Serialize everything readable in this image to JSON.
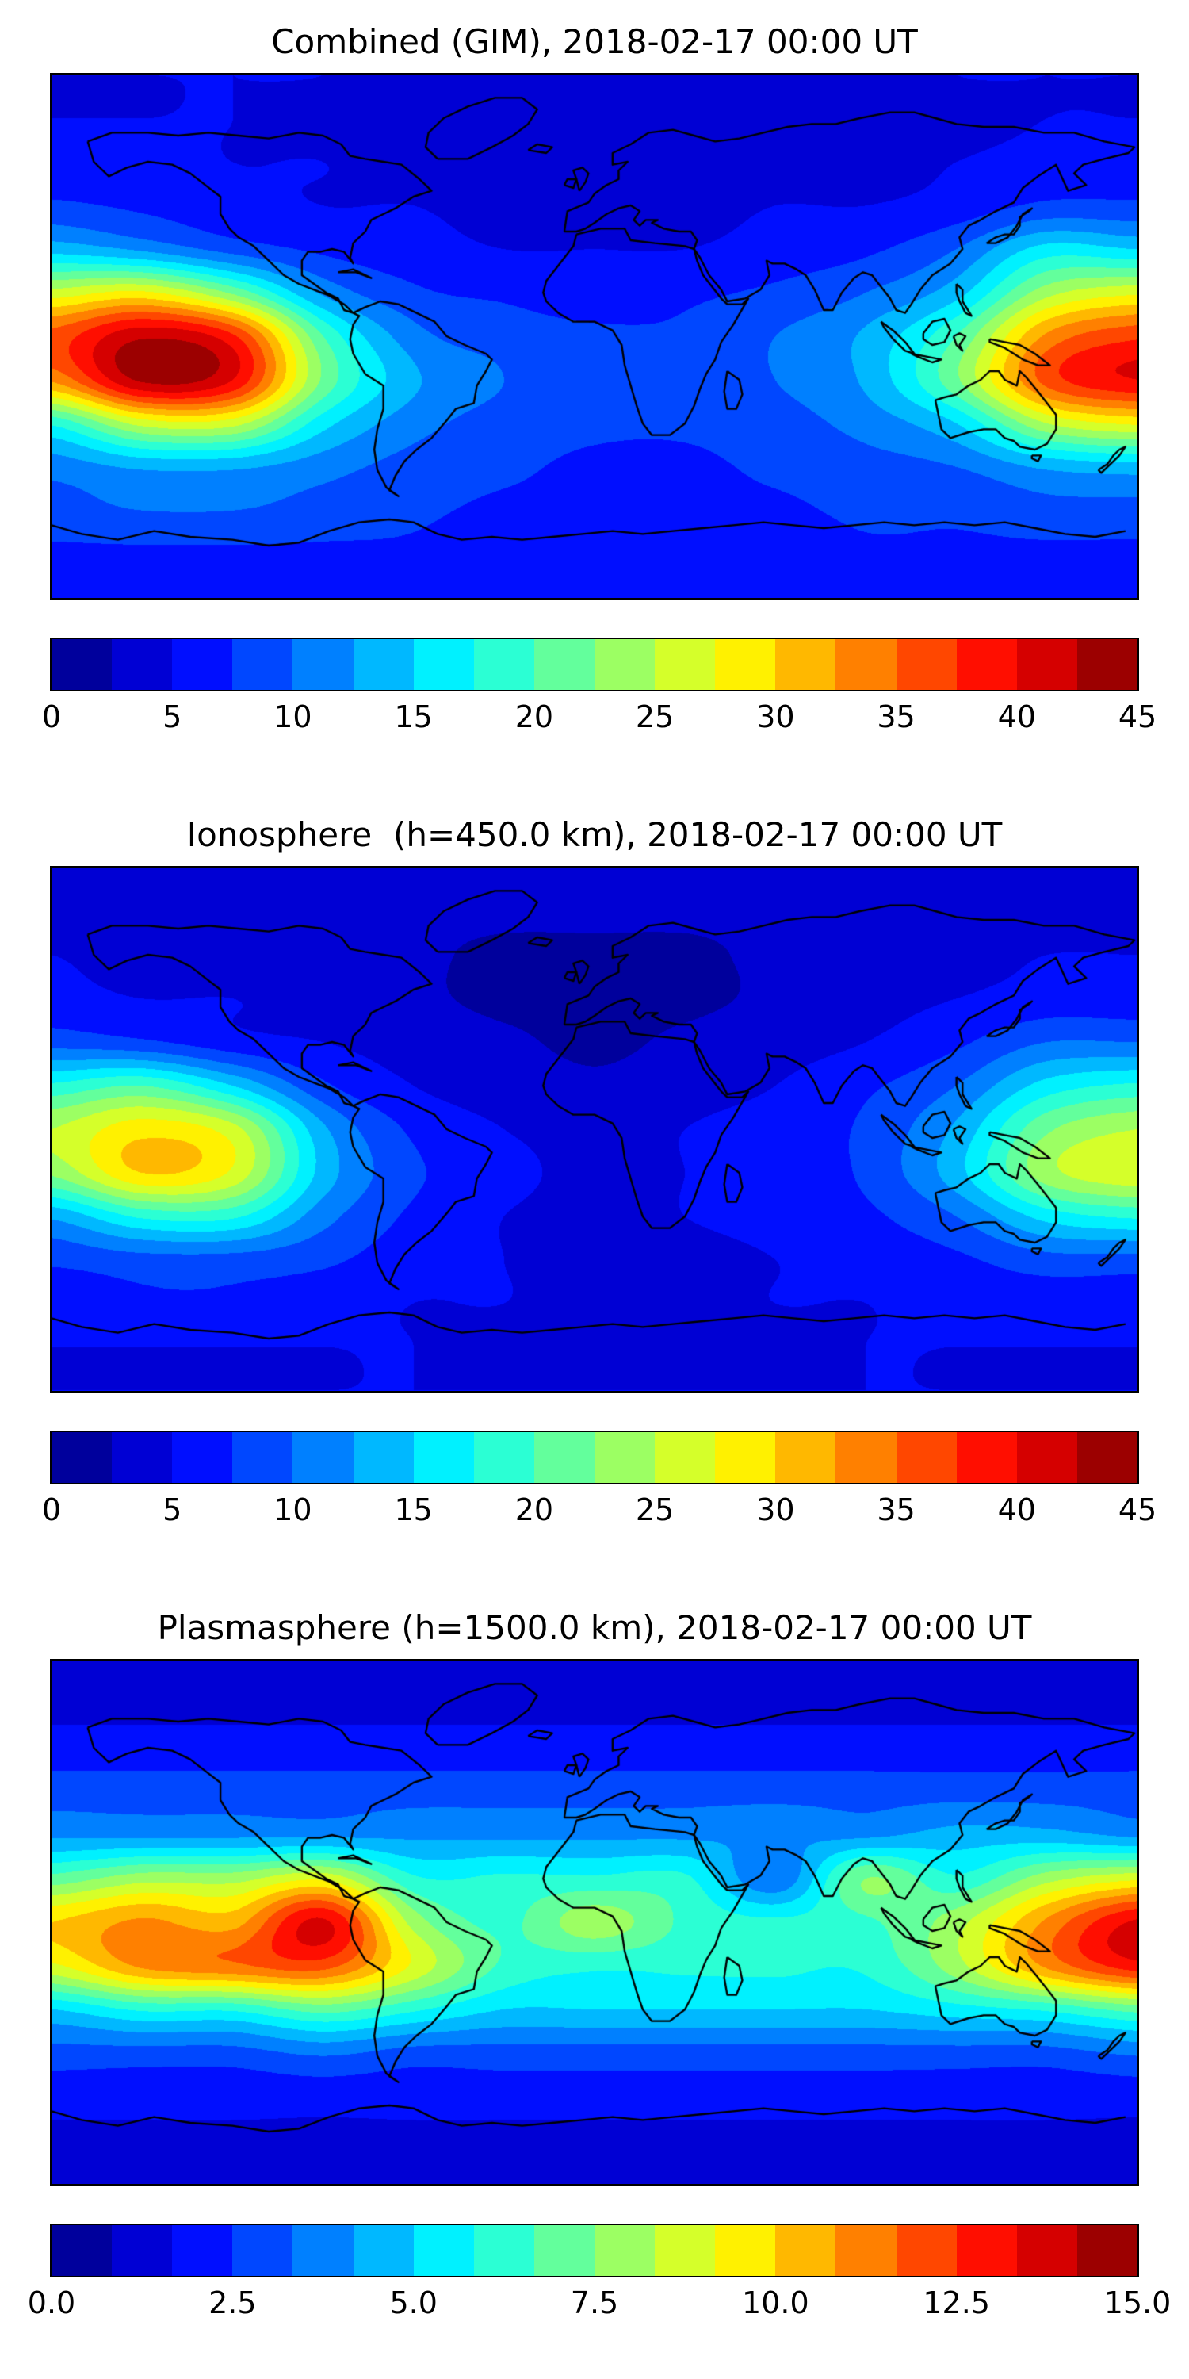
{
  "figure": {
    "background": "#ffffff",
    "coastline_color": "#000000"
  },
  "chart_data": [
    {
      "type": "heatmap",
      "title": "Combined (GIM), 2018-02-17 00:00 UT",
      "projection": "equirectangular",
      "colormap": "jet",
      "levels": 18,
      "vmin": 0,
      "vmax": 45,
      "lon": [
        -180,
        -150,
        -120,
        -90,
        -60,
        -30,
        0,
        30,
        60,
        90,
        120,
        150,
        180
      ],
      "lat": [
        90,
        75,
        60,
        45,
        30,
        15,
        0,
        -15,
        -30,
        -45,
        -60,
        -75,
        -90
      ],
      "values": [
        [
          5,
          5,
          5,
          5,
          4,
          4,
          4,
          4,
          4,
          4,
          5,
          5,
          5
        ],
        [
          5,
          5,
          5,
          4,
          4,
          3,
          3,
          3,
          3,
          4,
          4,
          5,
          5
        ],
        [
          6,
          6,
          5,
          5,
          4,
          3,
          3,
          3,
          4,
          4,
          5,
          6,
          6
        ],
        [
          8,
          7,
          6,
          5,
          5,
          4,
          4,
          4,
          5,
          5,
          6,
          8,
          8
        ],
        [
          14,
          12,
          9,
          7,
          6,
          5,
          5,
          5,
          6,
          7,
          10,
          16,
          15
        ],
        [
          26,
          28,
          22,
          12,
          8,
          7,
          6,
          7,
          8,
          10,
          14,
          24,
          27
        ],
        [
          36,
          42,
          38,
          20,
          11,
          9,
          8,
          8,
          10,
          13,
          20,
          33,
          37
        ],
        [
          33,
          43,
          40,
          22,
          13,
          10,
          8,
          9,
          10,
          13,
          22,
          36,
          40
        ],
        [
          18,
          26,
          26,
          16,
          11,
          9,
          8,
          8,
          9,
          11,
          15,
          25,
          28
        ],
        [
          11,
          13,
          13,
          11,
          9,
          8,
          7,
          7,
          8,
          9,
          10,
          13,
          14
        ],
        [
          9,
          10,
          10,
          9,
          8,
          7,
          7,
          7,
          7,
          8,
          8,
          9,
          9
        ],
        [
          7,
          7,
          7,
          7,
          7,
          6,
          6,
          6,
          6,
          7,
          7,
          7,
          7
        ],
        [
          6,
          6,
          6,
          6,
          6,
          6,
          6,
          6,
          6,
          6,
          6,
          6,
          6
        ]
      ],
      "colorbar_ticks": [
        0,
        5,
        10,
        15,
        20,
        25,
        30,
        35,
        40,
        45
      ],
      "colorbar_tick_labels": [
        "0",
        "5",
        "10",
        "15",
        "20",
        "25",
        "30",
        "35",
        "40",
        "45"
      ]
    },
    {
      "type": "heatmap",
      "title": "Ionosphere  (h=450.0 km), 2018-02-17 00:00 UT",
      "projection": "equirectangular",
      "colormap": "jet",
      "levels": 18,
      "vmin": 0,
      "vmax": 45,
      "lon": [
        -180,
        -150,
        -120,
        -90,
        -60,
        -30,
        0,
        30,
        60,
        90,
        120,
        150,
        180
      ],
      "lat": [
        90,
        75,
        60,
        45,
        30,
        15,
        0,
        -15,
        -30,
        -45,
        -60,
        -75,
        -90
      ],
      "values": [
        [
          4,
          4,
          4,
          4,
          3,
          3,
          3,
          3,
          3,
          3,
          4,
          4,
          4
        ],
        [
          4,
          4,
          4,
          3,
          3,
          3,
          3,
          3,
          3,
          3,
          4,
          4,
          4
        ],
        [
          5,
          4,
          4,
          4,
          3,
          2,
          2,
          2,
          3,
          3,
          4,
          5,
          5
        ],
        [
          6,
          5,
          5,
          4,
          3,
          2,
          2,
          2,
          3,
          4,
          5,
          6,
          6
        ],
        [
          9,
          8,
          6,
          5,
          4,
          3,
          2,
          3,
          4,
          5,
          7,
          10,
          10
        ],
        [
          18,
          20,
          15,
          8,
          5,
          4,
          3,
          4,
          5,
          7,
          10,
          16,
          18
        ],
        [
          25,
          29,
          26,
          13,
          7,
          5,
          4,
          5,
          6,
          8,
          13,
          22,
          25
        ],
        [
          23,
          30,
          27,
          14,
          8,
          6,
          4,
          5,
          6,
          8,
          14,
          24,
          27
        ],
        [
          13,
          18,
          18,
          11,
          7,
          5,
          4,
          5,
          6,
          7,
          10,
          16,
          18
        ],
        [
          8,
          9,
          9,
          8,
          6,
          5,
          4,
          4,
          5,
          6,
          7,
          9,
          9
        ],
        [
          6,
          7,
          7,
          6,
          5,
          5,
          4,
          4,
          5,
          5,
          6,
          6,
          6
        ],
        [
          5,
          5,
          5,
          5,
          5,
          4,
          4,
          4,
          4,
          5,
          5,
          5,
          5
        ],
        [
          5,
          5,
          5,
          5,
          5,
          5,
          5,
          5,
          5,
          5,
          5,
          5,
          5
        ]
      ],
      "colorbar_ticks": [
        0,
        5,
        10,
        15,
        20,
        25,
        30,
        35,
        40,
        45
      ],
      "colorbar_tick_labels": [
        "0",
        "5",
        "10",
        "15",
        "20",
        "25",
        "30",
        "35",
        "40",
        "45"
      ]
    },
    {
      "type": "heatmap",
      "title": "Plasmasphere (h=1500.0 km), 2018-02-17 00:00 UT",
      "projection": "equirectangular",
      "colormap": "jet",
      "levels": 18,
      "vmin": 0,
      "vmax": 15,
      "lon": [
        -180,
        -150,
        -120,
        -90,
        -60,
        -30,
        0,
        30,
        60,
        90,
        120,
        150,
        180
      ],
      "lat": [
        90,
        75,
        60,
        45,
        30,
        15,
        0,
        -15,
        -30,
        -45,
        -60,
        -75,
        -90
      ],
      "values": [
        [
          1.5,
          1.5,
          1.5,
          1.5,
          1.5,
          1.5,
          1.5,
          1.5,
          1.5,
          1.5,
          1.5,
          1.5,
          1.5
        ],
        [
          1.5,
          1.5,
          1.5,
          1.5,
          1.5,
          1.5,
          1.5,
          1.5,
          1.5,
          1.5,
          1.5,
          1.5,
          1.5
        ],
        [
          2,
          2,
          2,
          2,
          2,
          2,
          2,
          2,
          2,
          2,
          2,
          2,
          2
        ],
        [
          3,
          3,
          3,
          3,
          3,
          3,
          3,
          3,
          3,
          3,
          3,
          3,
          3
        ],
        [
          4,
          4,
          4,
          4,
          4,
          4,
          4,
          4,
          4,
          4,
          4.5,
          4.5,
          4
        ],
        [
          7,
          8,
          8,
          9,
          6,
          6,
          6,
          6,
          3.5,
          7.5,
          6,
          8,
          9
        ],
        [
          10,
          11,
          10.5,
          13.5,
          8,
          6.5,
          8,
          6.5,
          6,
          6.5,
          8,
          11,
          13.5
        ],
        [
          9,
          11,
          11.5,
          12,
          9,
          6.5,
          6,
          6,
          6,
          6,
          8,
          11,
          13
        ],
        [
          5,
          6,
          6,
          7,
          6,
          5,
          5,
          5,
          5,
          5,
          5.5,
          6,
          7
        ],
        [
          3,
          3,
          3,
          3.5,
          3,
          3,
          3,
          3,
          3,
          3,
          3,
          3,
          3.5
        ],
        [
          2,
          2,
          2,
          2,
          2,
          2,
          2,
          2,
          2,
          2,
          2,
          2,
          2
        ],
        [
          1.5,
          1.5,
          1.5,
          1.5,
          1.5,
          1.5,
          1.5,
          1.5,
          1.5,
          1.5,
          1.5,
          1.5,
          1.5
        ],
        [
          1.5,
          1.5,
          1.5,
          1.5,
          1.5,
          1.5,
          1.5,
          1.5,
          1.5,
          1.5,
          1.5,
          1.5,
          1.5
        ]
      ],
      "colorbar_ticks": [
        0,
        2.5,
        5,
        7.5,
        10,
        12.5,
        15
      ],
      "colorbar_tick_labels": [
        "0.0",
        "2.5",
        "5.0",
        "7.5",
        "10.0",
        "12.5",
        "15.0"
      ]
    }
  ]
}
